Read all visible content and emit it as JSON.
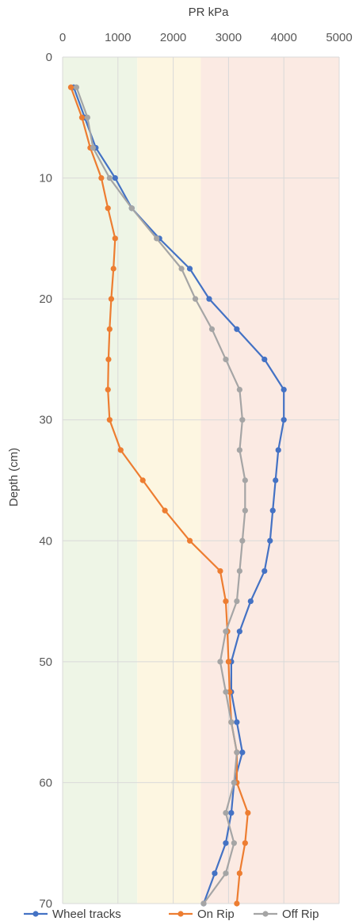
{
  "chart_data": {
    "type": "line",
    "orientation": "vertical-profile",
    "xlabel": "PR kPa",
    "ylabel": "Depth (cm)",
    "xlim": [
      0,
      5000
    ],
    "ylim": [
      0,
      70
    ],
    "y_inverted": true,
    "x_axis_position": "top",
    "x_ticks": [
      0,
      1000,
      2000,
      3000,
      4000,
      5000
    ],
    "y_ticks": [
      0,
      10,
      20,
      30,
      40,
      50,
      60,
      70
    ],
    "grid": true,
    "legend_position": "bottom",
    "background_bands": [
      {
        "from": 0,
        "to": 1350,
        "color": "#eef5e6"
      },
      {
        "from": 1350,
        "to": 2500,
        "color": "#fdf6e1"
      },
      {
        "from": 2500,
        "to": 5000,
        "color": "#fbeae3"
      }
    ],
    "series": [
      {
        "name": "Wheel tracks",
        "color": "#4472c4",
        "depth": [
          2.5,
          5,
          7.5,
          10,
          12.5,
          15,
          17.5,
          20,
          22.5,
          25,
          27.5,
          30,
          32.5,
          35,
          37.5,
          40,
          42.5,
          45,
          47.5,
          50,
          52.5,
          55,
          57.5,
          60,
          62.5,
          65,
          67.5,
          70
        ],
        "values": [
          200,
          400,
          600,
          950,
          1250,
          1750,
          2300,
          2650,
          3150,
          3650,
          4000,
          4000,
          3900,
          3850,
          3800,
          3750,
          3650,
          3400,
          3200,
          3050,
          3050,
          3150,
          3250,
          3100,
          3050,
          2950,
          2750,
          2550
        ]
      },
      {
        "name": "On Rip",
        "color": "#ed7d31",
        "depth": [
          2.5,
          5,
          7.5,
          10,
          12.5,
          15,
          17.5,
          20,
          22.5,
          25,
          27.5,
          30,
          32.5,
          35,
          37.5,
          40,
          42.5,
          45,
          47.5,
          50,
          52.5,
          55,
          57.5,
          60,
          62.5,
          65,
          67.5,
          70
        ],
        "values": [
          150,
          350,
          500,
          700,
          820,
          950,
          920,
          880,
          850,
          830,
          820,
          850,
          1050,
          1450,
          1850,
          2300,
          2850,
          2950,
          2980,
          3000,
          3020,
          3050,
          3150,
          3150,
          3350,
          3300,
          3200,
          3150
        ]
      },
      {
        "name": "Off Rip",
        "color": "#a5a5a5",
        "depth": [
          2.5,
          5,
          7.5,
          10,
          12.5,
          15,
          17.5,
          20,
          22.5,
          25,
          27.5,
          30,
          32.5,
          35,
          37.5,
          40,
          42.5,
          45,
          47.5,
          50,
          52.5,
          55,
          57.5,
          60,
          62.5,
          65,
          67.5,
          70
        ],
        "values": [
          250,
          450,
          550,
          850,
          1250,
          1700,
          2150,
          2400,
          2700,
          2950,
          3200,
          3250,
          3200,
          3300,
          3300,
          3250,
          3200,
          3150,
          2950,
          2850,
          2950,
          3050,
          3150,
          3100,
          2950,
          3100,
          2950,
          2550
        ]
      }
    ]
  }
}
